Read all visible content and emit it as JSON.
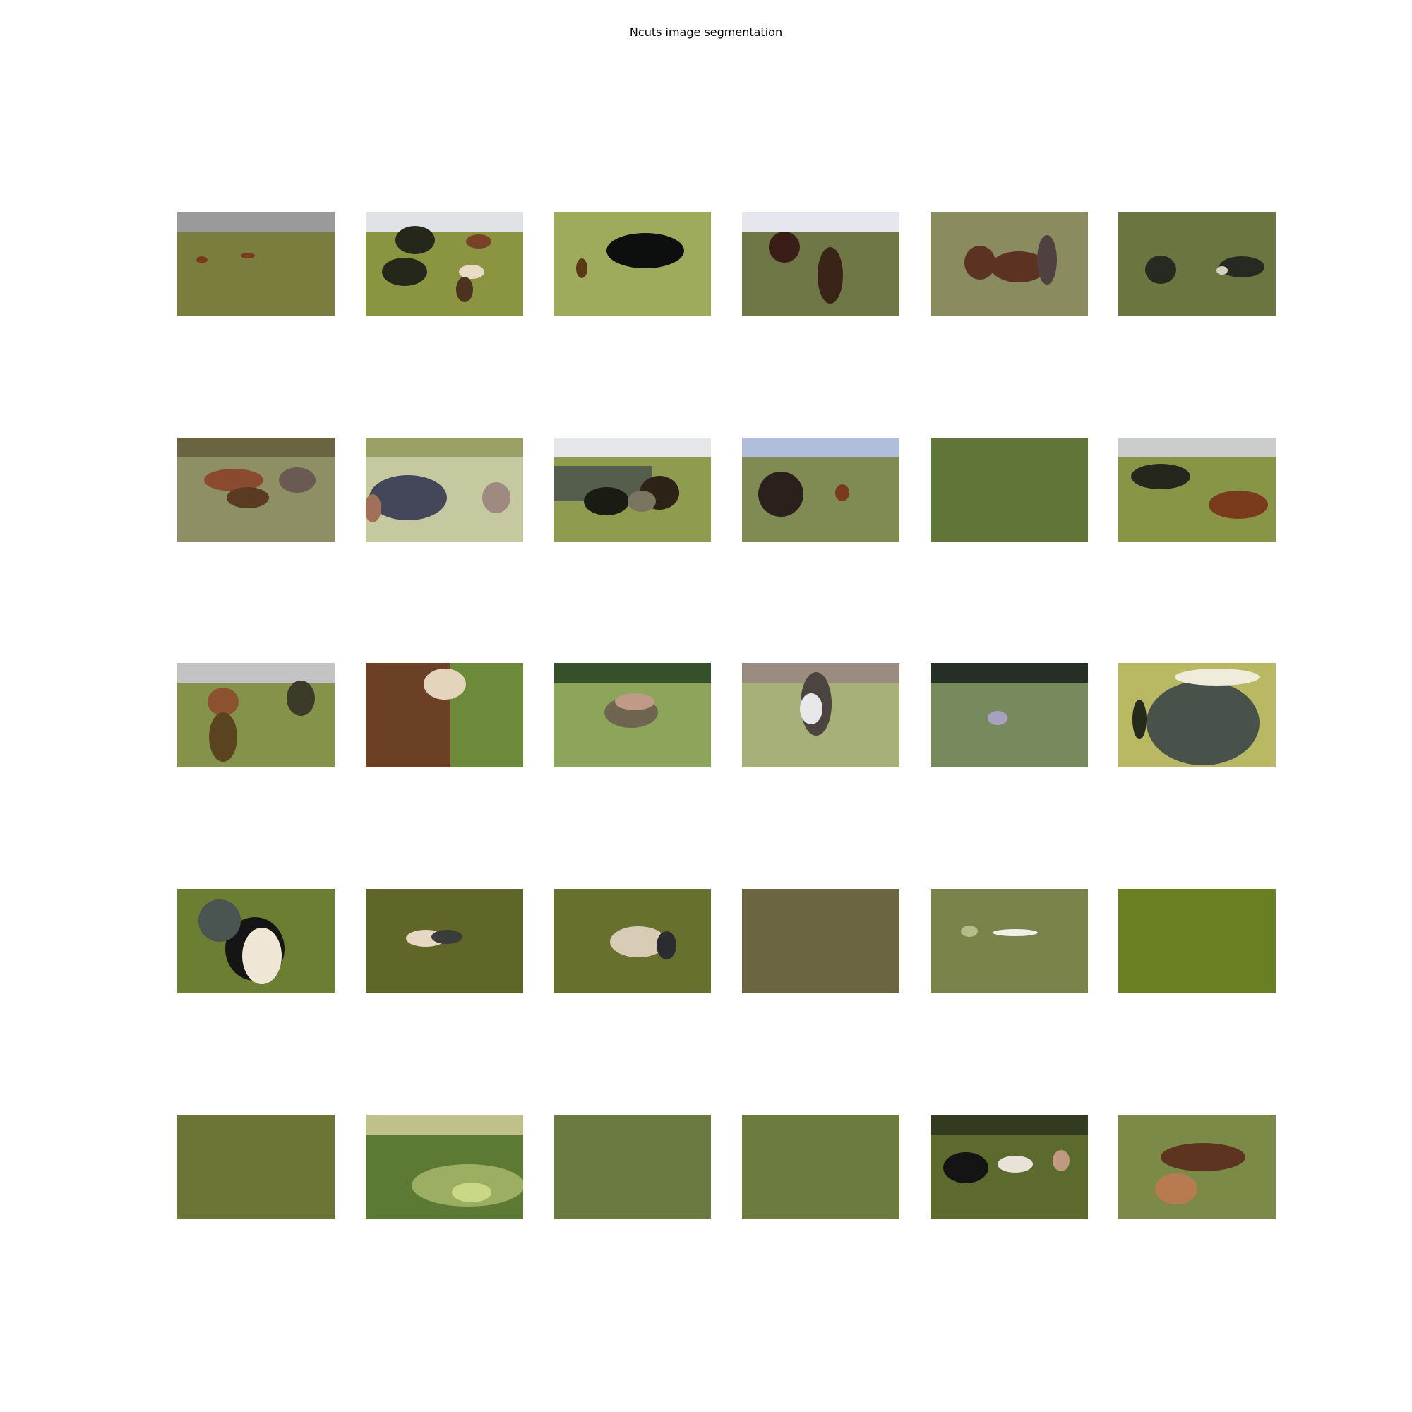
{
  "figure": {
    "title": "Ncuts image segmentation"
  },
  "grid": {
    "rows": 5,
    "cols": 6
  },
  "tiles": [
    {
      "background": "#7a7d3e",
      "top_band": "#9a9a9a",
      "blobs": [
        "#7a3b1c",
        "#7a3b1c"
      ]
    },
    {
      "background": "#8b9440",
      "top_band": "#dfe3e6",
      "blobs": [
        "#25271a",
        "#25271a",
        "#784226",
        "#e8dcc4",
        "#4c3320"
      ]
    },
    {
      "background": "#9eaa5c",
      "top_band": "",
      "blobs": [
        "#0d0f0f",
        "#5a3a14"
      ]
    },
    {
      "background": "#6f7746",
      "top_band": "#e6e6ef",
      "blobs": [
        "#3a1d16",
        "#3a2418"
      ]
    },
    {
      "background": "#8a8b5f",
      "top_band": "",
      "blobs": [
        "#5c3223",
        "#5c3223",
        "#504040"
      ]
    },
    {
      "background": "#6b7540",
      "top_band": "",
      "blobs": [
        "#262a20",
        "#262a20",
        "#d8d0c0"
      ]
    },
    {
      "background": "#8f8f66",
      "top_band": "#6b6440",
      "blobs": [
        "#8a4a30",
        "#5a3a20",
        "#6b5a52"
      ]
    },
    {
      "background": "#c6c8a0",
      "top_band": "#9aa066",
      "blobs": [
        "#44465a",
        "#9e8a80",
        "#a07058"
      ]
    },
    {
      "background": "#8f9c4f",
      "top_band": "#e4e6ea",
      "blobs": [
        "#555d4c",
        "#1a1c14",
        "#2c2216",
        "#7a7460"
      ]
    },
    {
      "background": "#7f8b52",
      "top_band": "#b0bedc",
      "blobs": [
        "#2a201c",
        "#7a3a22"
      ]
    },
    {
      "background": "#627538",
      "top_band": "",
      "blobs": []
    },
    {
      "background": "#889446",
      "top_band": "#cbcdcc",
      "blobs": [
        "#25271c",
        "#7a3a1c"
      ]
    },
    {
      "background": "#84924a",
      "top_band": "#c2c3c2",
      "blobs": [
        "#8c5230",
        "#5a4420",
        "#3c3a28"
      ]
    },
    {
      "background": "#6c8a3a",
      "top_band": "",
      "blobs": [
        "#6b4024",
        "#e4d4bc"
      ]
    },
    {
      "background": "#8da55a",
      "top_band": "#36502c",
      "blobs": [
        "#6e6450",
        "#c09a86"
      ]
    },
    {
      "background": "#a7b078",
      "top_band": "#9a8c80",
      "blobs": [
        "#4c4440",
        "#e8e8ea"
      ]
    },
    {
      "background": "#778a5e",
      "top_band": "#262f26",
      "blobs": [
        "#a8a0c0"
      ]
    },
    {
      "background": "#b9b863",
      "top_band": "",
      "blobs": [
        "#48524a",
        "#f0ecdc",
        "#262a1c"
      ]
    },
    {
      "background": "#6b7e32",
      "top_band": "",
      "blobs": [
        "#151515",
        "#4a5450",
        "#efe6d6"
      ]
    },
    {
      "background": "#5f6628",
      "top_band": "",
      "blobs": [
        "#e6d8c4",
        "#3a3c3c"
      ]
    },
    {
      "background": "#68702e",
      "top_band": "",
      "blobs": [
        "#d8ccb6",
        "#2a2c30"
      ]
    },
    {
      "background": "#6a6642",
      "top_band": "",
      "blobs": []
    },
    {
      "background": "#7a834a",
      "top_band": "",
      "blobs": [
        "#b4bc8a",
        "#f0f0ea"
      ]
    },
    {
      "background": "#6a7e22",
      "top_band": "",
      "blobs": []
    },
    {
      "background": "#6d7436",
      "top_band": "",
      "blobs": []
    },
    {
      "background": "#5c7a34",
      "top_band": "#c0c08a",
      "blobs": [
        "#9cae62",
        "#c8d886"
      ]
    },
    {
      "background": "#6b7a40",
      "top_band": "",
      "blobs": []
    },
    {
      "background": "#6c7c3e",
      "top_band": "",
      "blobs": []
    },
    {
      "background": "#5d6a2e",
      "top_band": "#323a20",
      "blobs": [
        "#141414",
        "#e8e2d8",
        "#c09a80"
      ]
    },
    {
      "background": "#7c8a48",
      "top_band": "",
      "blobs": [
        "#5c3420",
        "#b87a50"
      ]
    }
  ]
}
